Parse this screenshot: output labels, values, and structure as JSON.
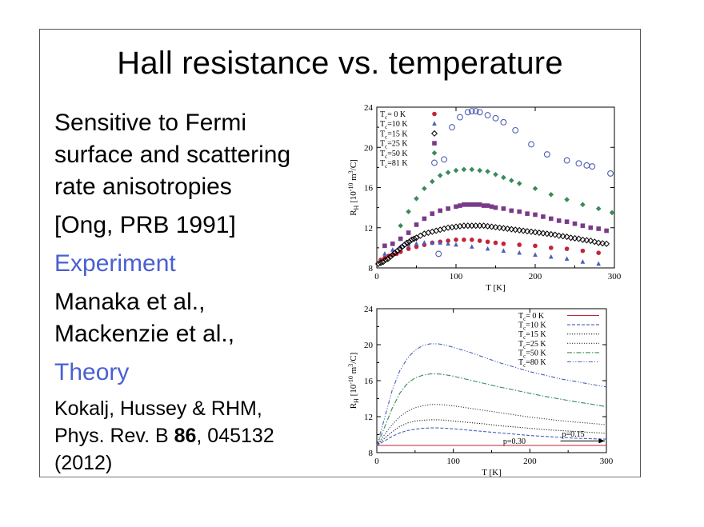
{
  "slide": {
    "title": "Hall resistance vs. temperature",
    "bullets": {
      "sensitive_1": "Sensitive to Fermi",
      "sensitive_2": "surface and scattering",
      "sensitive_3": "rate anisotropies",
      "ong": "[Ong, PRB 1991]",
      "experiment": "Experiment",
      "manaka": "Manaka et al.,",
      "mackenzie": "Mackenzie et al.,",
      "theory": "Theory",
      "kokalj": "Kokalj, Hussey & RHM,",
      "prb_pre": "Phys. Rev. B ",
      "prb_vol": "86",
      "prb_post": ", 045132",
      "year": "(2012)"
    },
    "colors": {
      "accent_blue": "#4a5fd0"
    }
  },
  "chart_data": [
    {
      "type": "scatter",
      "xlabel": "T [K]",
      "ylabel": "R_H [10^-10 m^3/C]",
      "xlim": [
        0,
        300
      ],
      "ylim": [
        8,
        24
      ],
      "xticks": [
        "0",
        "100",
        "200",
        "300"
      ],
      "yticks": [
        "8",
        "12",
        "16",
        "20",
        "24"
      ],
      "legend_position": "top-left",
      "series": [
        {
          "name": "Tc= 0 K",
          "color": "#c0253a",
          "marker": "circle",
          "x": [
            5,
            10,
            15,
            20,
            25,
            30,
            40,
            50,
            60,
            70,
            80,
            90,
            100,
            110,
            120,
            130,
            140,
            150,
            160,
            180,
            200,
            220,
            240,
            260,
            280
          ],
          "y": [
            8.8,
            9.0,
            9.2,
            9.3,
            9.4,
            9.6,
            9.9,
            10.1,
            10.3,
            10.5,
            10.6,
            10.7,
            10.8,
            10.8,
            10.8,
            10.7,
            10.6,
            10.5,
            10.4,
            10.3,
            10.2,
            10.0,
            9.9,
            9.7,
            9.5
          ]
        },
        {
          "name": "Tc=10 K",
          "color": "#4a5fb8",
          "marker": "triangle",
          "x": [
            10,
            20,
            30,
            40,
            50,
            60,
            70,
            80,
            90,
            100,
            120,
            140,
            160,
            180,
            200,
            220,
            240,
            260,
            280
          ],
          "y": [
            9.4,
            9.8,
            10.1,
            10.3,
            10.4,
            10.5,
            10.5,
            10.5,
            10.4,
            10.3,
            10.1,
            9.9,
            9.7,
            9.5,
            9.3,
            9.1,
            8.9,
            8.6,
            8.4
          ]
        },
        {
          "name": "Tc=15 K",
          "color": "#000000",
          "marker": "diamond",
          "x": [
            2,
            5,
            8,
            11,
            14,
            17,
            20,
            23,
            26,
            29,
            32,
            35,
            38,
            41,
            44,
            47,
            50,
            55,
            60,
            65,
            70,
            75,
            80,
            85,
            90,
            95,
            100,
            105,
            110,
            115,
            120,
            125,
            130,
            135,
            140,
            145,
            150,
            155,
            160,
            165,
            170,
            175,
            180,
            185,
            190,
            195,
            200,
            205,
            210,
            215,
            220,
            225,
            230,
            235,
            240,
            245,
            250,
            255,
            260,
            265,
            270,
            275,
            280,
            285,
            290
          ],
          "y": [
            8.4,
            8.5,
            8.6,
            8.8,
            8.9,
            9.1,
            9.3,
            9.5,
            9.7,
            9.9,
            10.1,
            10.3,
            10.5,
            10.6,
            10.8,
            10.9,
            11.0,
            11.2,
            11.4,
            11.5,
            11.6,
            11.7,
            11.8,
            11.9,
            12.0,
            12.05,
            12.1,
            12.15,
            12.2,
            12.2,
            12.2,
            12.2,
            12.2,
            12.2,
            12.15,
            12.1,
            12.05,
            12.0,
            11.95,
            11.9,
            11.85,
            11.8,
            11.75,
            11.7,
            11.65,
            11.6,
            11.55,
            11.5,
            11.45,
            11.4,
            11.35,
            11.3,
            11.2,
            11.15,
            11.1,
            11.0,
            10.95,
            10.9,
            10.8,
            10.75,
            10.7,
            10.6,
            10.5,
            10.45,
            10.4
          ]
        },
        {
          "name": "Tc=25 K",
          "color": "#7a3a8a",
          "marker": "square",
          "x": [
            10,
            20,
            30,
            40,
            50,
            60,
            70,
            80,
            90,
            100,
            105,
            110,
            115,
            120,
            125,
            130,
            135,
            140,
            145,
            150,
            160,
            170,
            180,
            190,
            200,
            210,
            220,
            230,
            240,
            250,
            260,
            270,
            280,
            290
          ],
          "y": [
            10.2,
            10.4,
            10.9,
            11.5,
            12.3,
            12.9,
            13.4,
            13.7,
            13.9,
            14.1,
            14.2,
            14.3,
            14.3,
            14.3,
            14.3,
            14.3,
            14.2,
            14.2,
            14.1,
            14.0,
            13.9,
            13.7,
            13.6,
            13.4,
            13.3,
            13.1,
            12.9,
            12.7,
            12.6,
            12.4,
            12.2,
            12.0,
            11.9,
            11.7
          ]
        },
        {
          "name": "Tc=50 K",
          "color": "#3a8a5a",
          "marker": "diamond-filled",
          "x": [
            30,
            40,
            50,
            60,
            70,
            80,
            90,
            100,
            110,
            120,
            130,
            140,
            150,
            160,
            170,
            180,
            200,
            220,
            240,
            260,
            280,
            297
          ],
          "y": [
            12.2,
            13.6,
            14.9,
            15.9,
            16.6,
            17.2,
            17.5,
            17.7,
            17.8,
            17.8,
            17.7,
            17.6,
            17.3,
            17.0,
            16.7,
            16.4,
            15.9,
            15.3,
            14.8,
            14.3,
            13.9,
            13.5
          ]
        },
        {
          "name": "Tc=81 K",
          "color": "#5060b0",
          "marker": "circle-open",
          "x": [
            78,
            85,
            95,
            105,
            115,
            120,
            125,
            130,
            140,
            150,
            160,
            175,
            195,
            215,
            240,
            255,
            265,
            272,
            295
          ],
          "y": [
            9.4,
            18.8,
            22.0,
            23.0,
            23.5,
            23.6,
            23.6,
            23.5,
            23.2,
            22.9,
            22.5,
            21.7,
            20.3,
            19.3,
            18.7,
            18.4,
            18.2,
            18.1,
            17.4
          ]
        }
      ]
    },
    {
      "type": "line",
      "xlabel": "T [K]",
      "ylabel": "R_H [10^-10 m^3/C]",
      "xlim": [
        0,
        300
      ],
      "ylim": [
        8,
        24
      ],
      "xticks": [
        "0",
        "100",
        "200",
        "300"
      ],
      "yticks": [
        "8",
        "12",
        "16",
        "20",
        "24"
      ],
      "legend_position": "top-right",
      "annotations": [
        "p=0.30",
        "p=0.15"
      ],
      "series": [
        {
          "name": "Tc= 0 K",
          "color": "#c0253a",
          "style": "solid",
          "x": [
            0,
            50,
            100,
            150,
            200,
            250,
            300
          ],
          "y": [
            8.8,
            8.8,
            8.8,
            8.8,
            8.8,
            8.8,
            8.8
          ]
        },
        {
          "name": "Tc=10 K",
          "color": "#4a5fb8",
          "style": "dashed",
          "x": [
            0,
            10,
            20,
            30,
            40,
            50,
            60,
            70,
            80,
            90,
            100,
            120,
            140,
            160,
            180,
            200,
            220,
            240,
            260,
            280,
            300
          ],
          "y": [
            8.8,
            9.3,
            9.8,
            10.2,
            10.45,
            10.6,
            10.7,
            10.75,
            10.75,
            10.7,
            10.65,
            10.5,
            10.35,
            10.2,
            10.05,
            9.9,
            9.8,
            9.7,
            9.6,
            9.55,
            9.5
          ]
        },
        {
          "name": "Tc=15 K",
          "color": "#222222",
          "style": "dotted",
          "x": [
            0,
            10,
            20,
            30,
            40,
            50,
            60,
            70,
            80,
            90,
            100,
            120,
            140,
            160,
            180,
            200,
            220,
            240,
            260,
            280,
            300
          ],
          "y": [
            8.8,
            9.6,
            10.3,
            10.9,
            11.3,
            11.5,
            11.6,
            11.65,
            11.65,
            11.6,
            11.5,
            11.35,
            11.2,
            11.0,
            10.85,
            10.7,
            10.55,
            10.45,
            10.35,
            10.25,
            10.15
          ]
        },
        {
          "name": "Tc=25 K",
          "color": "#3a3a5a",
          "style": "dotted",
          "x": [
            0,
            10,
            20,
            30,
            40,
            50,
            60,
            70,
            80,
            90,
            100,
            120,
            140,
            160,
            180,
            200,
            220,
            240,
            260,
            280,
            300
          ],
          "y": [
            8.8,
            10.0,
            11.1,
            12.0,
            12.6,
            13.0,
            13.2,
            13.35,
            13.35,
            13.3,
            13.2,
            12.95,
            12.7,
            12.45,
            12.2,
            11.95,
            11.75,
            11.55,
            11.4,
            11.25,
            11.1
          ]
        },
        {
          "name": "Tc=50 K",
          "color": "#3a8a5a",
          "style": "dashdot",
          "x": [
            0,
            10,
            20,
            30,
            40,
            50,
            60,
            70,
            80,
            90,
            100,
            120,
            140,
            160,
            180,
            200,
            220,
            240,
            260,
            280,
            300
          ],
          "y": [
            8.8,
            10.8,
            12.9,
            14.6,
            15.7,
            16.3,
            16.6,
            16.75,
            16.75,
            16.65,
            16.5,
            16.1,
            15.7,
            15.3,
            14.95,
            14.6,
            14.25,
            13.95,
            13.65,
            13.4,
            13.1
          ]
        },
        {
          "name": "Tc=80 K",
          "color": "#4a5fb8",
          "style": "dashdotdot",
          "x": [
            0,
            10,
            20,
            30,
            40,
            50,
            60,
            70,
            80,
            90,
            100,
            120,
            140,
            160,
            180,
            200,
            220,
            240,
            260,
            280,
            300
          ],
          "y": [
            8.8,
            11.8,
            14.9,
            17.1,
            18.5,
            19.4,
            19.9,
            20.1,
            20.1,
            19.95,
            19.7,
            19.2,
            18.6,
            18.0,
            17.5,
            17.0,
            16.6,
            16.2,
            15.9,
            15.6,
            15.3
          ]
        }
      ]
    }
  ]
}
